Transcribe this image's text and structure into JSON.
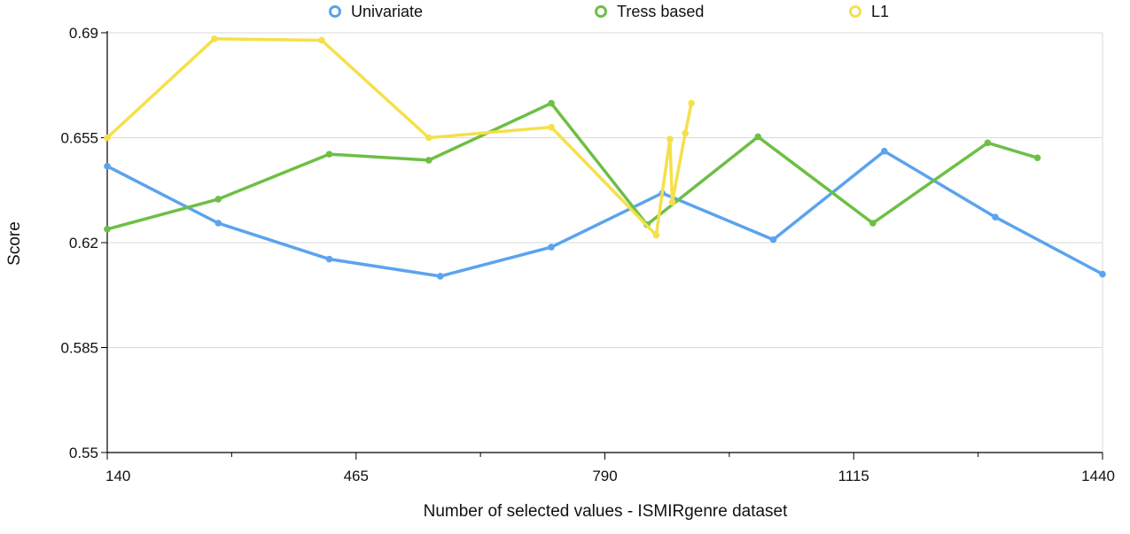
{
  "chart_data": {
    "type": "line",
    "xlabel": "Number of selected values - ISMIRgenre dataset",
    "ylabel": "Score",
    "xlim": [
      140,
      1440
    ],
    "ylim": [
      0.55,
      0.69
    ],
    "x_ticks": [
      140,
      465,
      790,
      1115,
      1440
    ],
    "x_tick_labels": [
      "140",
      "465",
      "790",
      "1115",
      "1440"
    ],
    "y_ticks": [
      0.55,
      0.585,
      0.62,
      0.655,
      0.69
    ],
    "y_tick_labels": [
      "0.55",
      "0.585",
      "0.62",
      "0.655",
      "0.69"
    ],
    "grid": "horizontal",
    "legend": "top",
    "series": [
      {
        "name": "Univariate",
        "color": "#5ba3ee",
        "x": [
          140,
          285,
          430,
          575,
          720,
          865,
          1010,
          1155,
          1300,
          1440
        ],
        "y": [
          0.6455,
          0.6265,
          0.6145,
          0.6088,
          0.6185,
          0.6365,
          0.621,
          0.6505,
          0.6285,
          0.6095
        ]
      },
      {
        "name": "Tress based",
        "color": "#6dbf45",
        "x": [
          140,
          285,
          430,
          560,
          720,
          845,
          990,
          1140,
          1290,
          1355
        ],
        "y": [
          0.6245,
          0.6345,
          0.6495,
          0.6475,
          0.6665,
          0.626,
          0.6553,
          0.6265,
          0.6533,
          0.6483
        ]
      },
      {
        "name": "L1",
        "color": "#f5e04a",
        "x": [
          140,
          280,
          420,
          560,
          720,
          857,
          875,
          878,
          895,
          903
        ],
        "y": [
          0.655,
          0.688,
          0.6875,
          0.655,
          0.6585,
          0.6225,
          0.6545,
          0.6335,
          0.6565,
          0.6665
        ]
      }
    ]
  }
}
